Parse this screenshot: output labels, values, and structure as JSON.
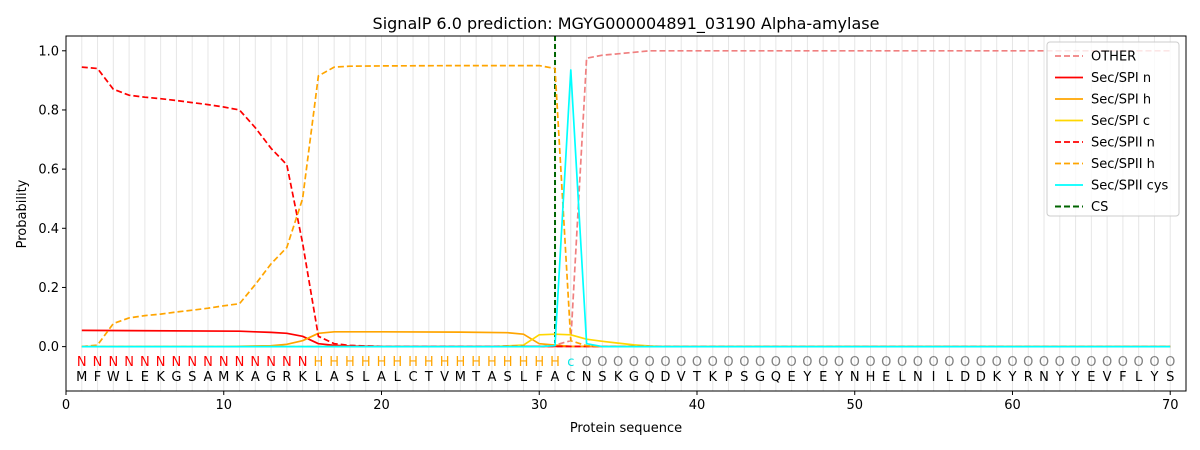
{
  "chart_data": {
    "type": "line",
    "title": "SignalP 6.0 prediction: MGYG000004891_03190 Alpha-amylase",
    "xlabel": "Protein sequence",
    "ylabel": "Probability",
    "xlim": [
      0,
      71
    ],
    "ylim": [
      -0.15,
      1.05
    ],
    "xticks": [
      0,
      10,
      20,
      30,
      40,
      50,
      60,
      70
    ],
    "yticks": [
      0.0,
      0.2,
      0.4,
      0.6,
      0.8,
      1.0
    ],
    "xtick_labels": [
      "0",
      "10",
      "20",
      "30",
      "40",
      "50",
      "60",
      "70"
    ],
    "ytick_labels": [
      "0.0",
      "0.2",
      "0.4",
      "0.6",
      "0.8",
      "1.0"
    ],
    "grid": "vertical",
    "legend_position": "top-right",
    "sequence": [
      "M",
      "F",
      "W",
      "L",
      "E",
      "K",
      "G",
      "S",
      "A",
      "M",
      "K",
      "A",
      "G",
      "R",
      "K",
      "L",
      "A",
      "S",
      "L",
      "A",
      "L",
      "C",
      "T",
      "V",
      "M",
      "T",
      "A",
      "S",
      "L",
      "F",
      "A",
      "C",
      "N",
      "S",
      "K",
      "G",
      "Q",
      "D",
      "V",
      "T",
      "K",
      "P",
      "S",
      "G",
      "Q",
      "E",
      "Y",
      "E",
      "Y",
      "N",
      "H",
      "E",
      "L",
      "N",
      "I",
      "L",
      "D",
      "D",
      "K",
      "Y",
      "R",
      "N",
      "Y",
      "Y",
      "E",
      "V",
      "F",
      "L",
      "Y",
      "S"
    ],
    "regions": [
      "N",
      "N",
      "N",
      "N",
      "N",
      "N",
      "N",
      "N",
      "N",
      "N",
      "N",
      "N",
      "N",
      "N",
      "N",
      "H",
      "H",
      "H",
      "H",
      "H",
      "H",
      "H",
      "H",
      "H",
      "H",
      "H",
      "H",
      "H",
      "H",
      "H",
      "H",
      "C",
      "O",
      "O",
      "O",
      "O",
      "O",
      "O",
      "O",
      "O",
      "O",
      "O",
      "O",
      "O",
      "O",
      "O",
      "O",
      "O",
      "O",
      "O",
      "O",
      "O",
      "O",
      "O",
      "O",
      "O",
      "O",
      "O",
      "O",
      "O",
      "O",
      "O",
      "O",
      "O",
      "O",
      "O",
      "O",
      "O",
      "O",
      "O"
    ],
    "region_colors": {
      "N": "#ff0000",
      "H": "#ffa500",
      "C": "#00e5e5",
      "O": "#808080"
    },
    "cs_position": 31,
    "series": [
      {
        "name": "OTHER",
        "color": "#f08080",
        "dash": "dashed",
        "points": [
          [
            1,
            0
          ],
          [
            30,
            0
          ],
          [
            31,
            0.005
          ],
          [
            32,
            0.02
          ],
          [
            33,
            0.975
          ],
          [
            34,
            0.985
          ],
          [
            35,
            0.99
          ],
          [
            36,
            0.995
          ],
          [
            37,
            1.0
          ],
          [
            70,
            1.0
          ]
        ]
      },
      {
        "name": "Sec/SPI n",
        "color": "#ff0000",
        "dash": "solid",
        "points": [
          [
            1,
            0.055
          ],
          [
            11,
            0.052
          ],
          [
            12,
            0.05
          ],
          [
            13,
            0.048
          ],
          [
            14,
            0.045
          ],
          [
            15,
            0.035
          ],
          [
            16,
            0.01
          ],
          [
            17,
            0.004
          ],
          [
            18,
            0.002
          ],
          [
            20,
            0.001
          ],
          [
            70,
            0
          ]
        ]
      },
      {
        "name": "Sec/SPI h",
        "color": "#ffa500",
        "dash": "solid",
        "points": [
          [
            1,
            0
          ],
          [
            10,
            0
          ],
          [
            13,
            0.003
          ],
          [
            14,
            0.008
          ],
          [
            15,
            0.02
          ],
          [
            16,
            0.045
          ],
          [
            17,
            0.05
          ],
          [
            20,
            0.05
          ],
          [
            25,
            0.049
          ],
          [
            28,
            0.047
          ],
          [
            29,
            0.042
          ],
          [
            30,
            0.01
          ],
          [
            31,
            0.005
          ],
          [
            32,
            0.001
          ],
          [
            70,
            0
          ]
        ]
      },
      {
        "name": "Sec/SPI c",
        "color": "#ffd700",
        "dash": "solid",
        "points": [
          [
            1,
            0
          ],
          [
            27,
            0
          ],
          [
            29,
            0.005
          ],
          [
            30,
            0.04
          ],
          [
            31,
            0.042
          ],
          [
            32,
            0.04
          ],
          [
            33,
            0.025
          ],
          [
            34,
            0.018
          ],
          [
            35,
            0.012
          ],
          [
            36,
            0.006
          ],
          [
            37,
            0.002
          ],
          [
            38,
            0
          ],
          [
            70,
            0
          ]
        ]
      },
      {
        "name": "Sec/SPII n",
        "color": "#ff0000",
        "dash": "dashed",
        "points": [
          [
            1,
            0.945
          ],
          [
            2,
            0.94
          ],
          [
            3,
            0.87
          ],
          [
            4,
            0.85
          ],
          [
            5,
            0.843
          ],
          [
            6,
            0.838
          ],
          [
            7,
            0.832
          ],
          [
            8,
            0.825
          ],
          [
            9,
            0.818
          ],
          [
            10,
            0.81
          ],
          [
            11,
            0.8
          ],
          [
            12,
            0.74
          ],
          [
            13,
            0.67
          ],
          [
            14,
            0.615
          ],
          [
            15,
            0.35
          ],
          [
            16,
            0.035
          ],
          [
            17,
            0.01
          ],
          [
            18,
            0.004
          ],
          [
            19,
            0.002
          ],
          [
            20,
            0.001
          ],
          [
            70,
            0
          ]
        ]
      },
      {
        "name": "Sec/SPII h",
        "color": "#ffa500",
        "dash": "dashed",
        "points": [
          [
            1,
            0
          ],
          [
            2,
            0.005
          ],
          [
            3,
            0.078
          ],
          [
            4,
            0.097
          ],
          [
            5,
            0.105
          ],
          [
            6,
            0.11
          ],
          [
            7,
            0.117
          ],
          [
            8,
            0.123
          ],
          [
            9,
            0.13
          ],
          [
            10,
            0.138
          ],
          [
            11,
            0.145
          ],
          [
            12,
            0.21
          ],
          [
            13,
            0.28
          ],
          [
            14,
            0.335
          ],
          [
            15,
            0.5
          ],
          [
            16,
            0.915
          ],
          [
            17,
            0.945
          ],
          [
            18,
            0.948
          ],
          [
            20,
            0.949
          ],
          [
            25,
            0.95
          ],
          [
            30,
            0.95
          ],
          [
            31,
            0.94
          ],
          [
            32,
            0.02
          ],
          [
            33,
            0.003
          ],
          [
            34,
            0
          ],
          [
            70,
            0
          ]
        ]
      },
      {
        "name": "Sec/SPII cys",
        "color": "#00ffff",
        "dash": "solid",
        "points": [
          [
            1,
            0
          ],
          [
            30,
            0
          ],
          [
            31,
            0.003
          ],
          [
            32,
            0.935
          ],
          [
            33,
            0.01
          ],
          [
            34,
            0
          ],
          [
            70,
            0
          ]
        ]
      },
      {
        "name": "CS",
        "color": "#006400",
        "dash": "dashed",
        "points": []
      }
    ]
  }
}
